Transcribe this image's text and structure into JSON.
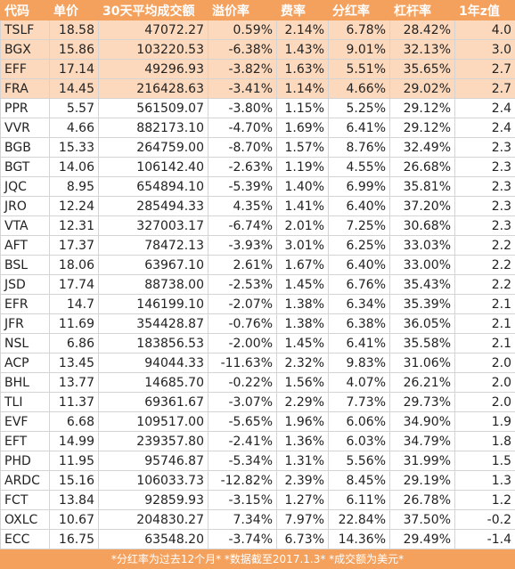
{
  "table": {
    "header": [
      "代码",
      "单价",
      "30天平均成交额",
      "溢价率",
      "费率",
      "分红率",
      "杠杆率",
      "1年z值"
    ],
    "rows": [
      [
        "TSLF",
        "18.58",
        "47072.27",
        "0.59%",
        "2.14%",
        "6.78%",
        "28.42%",
        "4.0"
      ],
      [
        "BGX",
        "15.86",
        "103220.53",
        "-6.38%",
        "1.43%",
        "9.01%",
        "32.13%",
        "3.0"
      ],
      [
        "EFF",
        "17.14",
        "49296.93",
        "-3.82%",
        "1.63%",
        "5.51%",
        "35.65%",
        "2.7"
      ],
      [
        "FRA",
        "14.45",
        "216428.63",
        "-3.41%",
        "1.14%",
        "4.66%",
        "29.02%",
        "2.7"
      ],
      [
        "PPR",
        "5.57",
        "561509.07",
        "-3.80%",
        "1.15%",
        "5.25%",
        "29.12%",
        "2.4"
      ],
      [
        "VVR",
        "4.66",
        "882173.10",
        "-4.70%",
        "1.69%",
        "6.41%",
        "29.12%",
        "2.4"
      ],
      [
        "BGB",
        "15.33",
        "264759.00",
        "-8.70%",
        "1.57%",
        "8.76%",
        "32.49%",
        "2.3"
      ],
      [
        "BGT",
        "14.06",
        "106142.40",
        "-2.63%",
        "1.19%",
        "4.55%",
        "26.68%",
        "2.3"
      ],
      [
        "JQC",
        "8.95",
        "654894.10",
        "-5.39%",
        "1.40%",
        "6.99%",
        "35.81%",
        "2.3"
      ],
      [
        "JRO",
        "12.24",
        "285494.33",
        "4.35%",
        "1.41%",
        "6.40%",
        "37.20%",
        "2.3"
      ],
      [
        "VTA",
        "12.31",
        "327003.17",
        "-6.74%",
        "2.01%",
        "7.25%",
        "30.68%",
        "2.3"
      ],
      [
        "AFT",
        "17.37",
        "78472.13",
        "-3.93%",
        "3.01%",
        "6.25%",
        "33.03%",
        "2.2"
      ],
      [
        "BSL",
        "18.06",
        "63967.10",
        "2.61%",
        "1.67%",
        "6.40%",
        "33.00%",
        "2.2"
      ],
      [
        "JSD",
        "17.74",
        "88738.00",
        "-2.53%",
        "1.45%",
        "6.76%",
        "35.43%",
        "2.2"
      ],
      [
        "EFR",
        "14.7",
        "146199.10",
        "-2.07%",
        "1.38%",
        "6.34%",
        "35.39%",
        "2.1"
      ],
      [
        "JFR",
        "11.69",
        "354428.87",
        "-0.76%",
        "1.38%",
        "6.38%",
        "36.05%",
        "2.1"
      ],
      [
        "NSL",
        "6.86",
        "183856.53",
        "-2.00%",
        "1.45%",
        "6.41%",
        "35.58%",
        "2.1"
      ],
      [
        "ACP",
        "13.45",
        "94044.33",
        "-11.63%",
        "2.32%",
        "9.83%",
        "31.06%",
        "2.0"
      ],
      [
        "BHL",
        "13.77",
        "14685.70",
        "-0.22%",
        "1.56%",
        "4.07%",
        "26.21%",
        "2.0"
      ],
      [
        "TLI",
        "11.37",
        "69361.67",
        "-3.07%",
        "2.29%",
        "7.73%",
        "29.73%",
        "2.0"
      ],
      [
        "EVF",
        "6.68",
        "109517.00",
        "-5.65%",
        "1.96%",
        "6.06%",
        "34.90%",
        "1.9"
      ],
      [
        "EFT",
        "14.99",
        "239357.80",
        "-2.41%",
        "1.36%",
        "6.03%",
        "34.79%",
        "1.8"
      ],
      [
        "PHD",
        "11.95",
        "95746.87",
        "-5.34%",
        "1.31%",
        "5.56%",
        "31.99%",
        "1.5"
      ],
      [
        "ARDC",
        "15.16",
        "106033.73",
        "-12.82%",
        "2.39%",
        "8.45%",
        "29.19%",
        "1.3"
      ],
      [
        "FCT",
        "13.84",
        "92859.93",
        "-3.15%",
        "1.27%",
        "6.11%",
        "26.78%",
        "1.2"
      ],
      [
        "OXLC",
        "10.67",
        "204830.27",
        "7.34%",
        "7.97%",
        "22.84%",
        "37.50%",
        "-0.2"
      ],
      [
        "ECC",
        "16.75",
        "63548.20",
        "-3.74%",
        "6.73%",
        "14.36%",
        "29.49%",
        "-1.4"
      ]
    ],
    "footer": "*分红率为过去12个月*  *数据截至2017.1.3*  *成交额为美元*"
  }
}
